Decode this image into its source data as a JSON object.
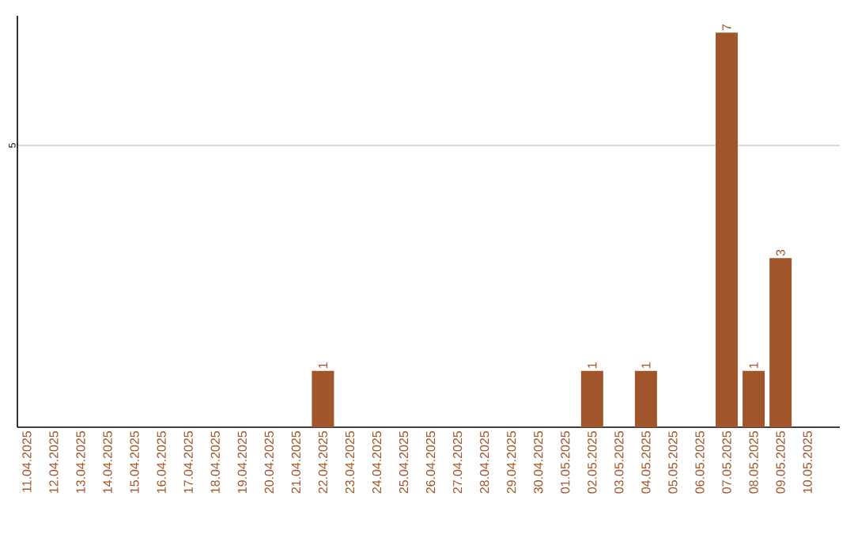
{
  "chart_data": {
    "type": "bar",
    "categories": [
      "11.04.2025",
      "12.04.2025",
      "13.04.2025",
      "14.04.2025",
      "15.04.2025",
      "16.04.2025",
      "17.04.2025",
      "18.04.2025",
      "19.04.2025",
      "20.04.2025",
      "21.04.2025",
      "22.04.2025",
      "23.04.2025",
      "24.04.2025",
      "25.04.2025",
      "26.04.2025",
      "27.04.2025",
      "28.04.2025",
      "29.04.2025",
      "30.04.2025",
      "01.05.2025",
      "02.05.2025",
      "03.05.2025",
      "04.05.2025",
      "05.05.2025",
      "06.05.2025",
      "07.05.2025",
      "08.05.2025",
      "09.05.2025",
      "10.05.2025"
    ],
    "values": [
      0,
      0,
      0,
      0,
      0,
      0,
      0,
      0,
      0,
      0,
      0,
      1,
      0,
      0,
      0,
      0,
      0,
      0,
      0,
      0,
      0,
      1,
      0,
      1,
      0,
      0,
      7,
      1,
      3,
      0
    ],
    "value_labels": [
      null,
      null,
      null,
      null,
      null,
      null,
      null,
      null,
      null,
      null,
      null,
      "1",
      null,
      null,
      null,
      null,
      null,
      null,
      null,
      null,
      null,
      "1",
      null,
      "1",
      null,
      null,
      "7",
      "1",
      "3",
      null
    ],
    "color": "#a0552a",
    "ylim": [
      0,
      7.3
    ],
    "yticks": [
      5
    ],
    "grid": "y"
  }
}
